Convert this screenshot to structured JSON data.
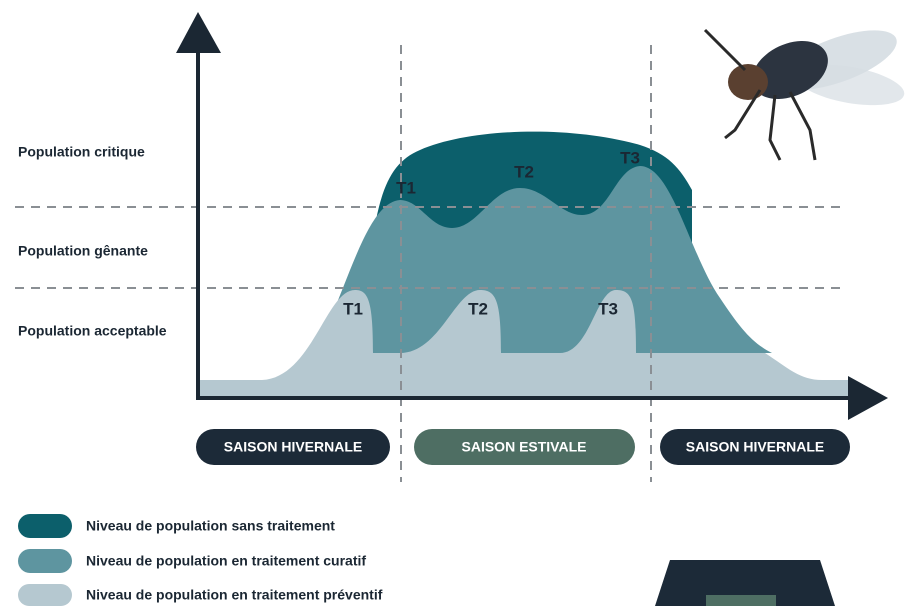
{
  "levels": [
    "Population critique",
    "Population gênante",
    "Population acceptable"
  ],
  "curative_labels": [
    "T1",
    "T2",
    "T3"
  ],
  "preventive_labels": [
    "T1",
    "T2",
    "T3"
  ],
  "seasons": [
    "SAISON HIVERNALE",
    "SAISON ESTIVALE",
    "SAISON HIVERNALE"
  ],
  "legend": [
    "Niveau de population sans traitement",
    "Niveau de population en traitement curatif",
    "Niveau de population en traitement préventif"
  ]
}
